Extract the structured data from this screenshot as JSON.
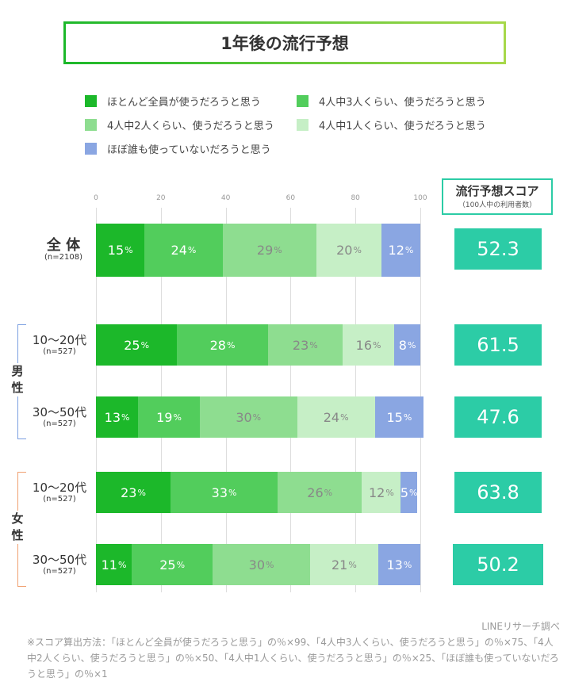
{
  "chart_data": {
    "type": "bar",
    "orientation": "horizontal-stacked",
    "title": "1年後の流行予想",
    "xlim": [
      0,
      100
    ],
    "ticks": [
      "0",
      "20",
      "40",
      "60",
      "80",
      "100"
    ],
    "grid": true,
    "legend_position": "top",
    "series": [
      {
        "name": "ほとんど全員が使うだろうと思う",
        "color": "#1cb82a"
      },
      {
        "name": "4人中3人くらい、使うだろうと思う",
        "color": "#52cd5c"
      },
      {
        "name": "4人中2人くらい、使うだろうと思う",
        "color": "#8edd90"
      },
      {
        "name": "4人中1人くらい、使うだろうと思う",
        "color": "#c6efc6"
      },
      {
        "name": "ほぼ誰も使っていないだろうと思う",
        "color": "#8aa6e2"
      }
    ],
    "rows": [
      {
        "label": "全 体",
        "n": "(n=2108)",
        "values": [
          15,
          24,
          29,
          20,
          12
        ],
        "score": "52.3"
      },
      {
        "label": "10～20代",
        "n": "(n=527)",
        "group": "男性",
        "values": [
          25,
          28,
          23,
          16,
          8
        ],
        "score": "61.5"
      },
      {
        "label": "30～50代",
        "n": "(n=527)",
        "group": "男性",
        "values": [
          13,
          19,
          30,
          24,
          15
        ],
        "score": "47.6"
      },
      {
        "label": "10～20代",
        "n": "(n=527)",
        "group": "女性",
        "values": [
          23,
          33,
          26,
          12,
          5
        ],
        "score": "63.8"
      },
      {
        "label": "30～50代",
        "n": "(n=527)",
        "group": "女性",
        "values": [
          11,
          25,
          30,
          21,
          13
        ],
        "score": "50.2"
      }
    ]
  },
  "score_header": {
    "title": "流行予想スコア",
    "sub": "（100人中の利用者数）",
    "color": "#2ccca6"
  },
  "groups": {
    "male": "男\n性",
    "female": "女\n性",
    "male_color": "#7a9ee0",
    "female_color": "#f0a070"
  },
  "footer": {
    "source": "LINEリサーチ調べ",
    "note": "※スコア算出方法：「ほとんど全員が使うだろうと思う」の％×99、「4人中3人くらい、使うだろうと思う」の％×75、「4人中2人くらい、使うだろうと思う」の％×50、「4人中1人くらい、使うだろうと思う」の％×25、「ほぼ誰も使っていないだろうと思う」の％×1"
  }
}
